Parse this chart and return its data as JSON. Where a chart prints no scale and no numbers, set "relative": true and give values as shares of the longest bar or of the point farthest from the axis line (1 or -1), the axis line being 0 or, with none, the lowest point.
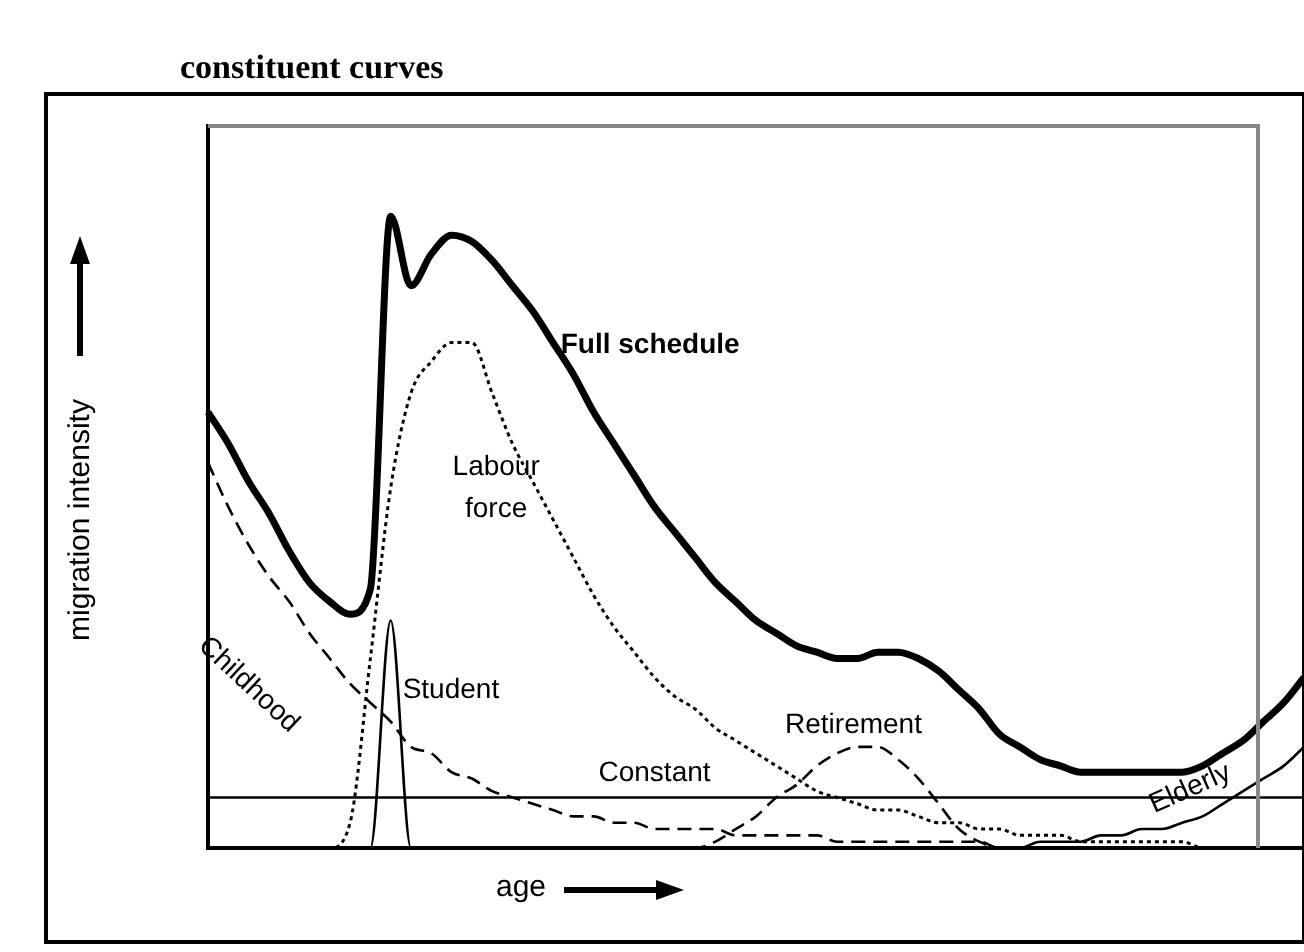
{
  "chart_data": {
    "type": "line",
    "title": "constituent curves",
    "xlabel": "age",
    "ylabel": "migration intensity",
    "relative": true,
    "legend": false,
    "marker": "none",
    "categories": [
      null,
      null,
      null,
      null,
      null,
      null,
      null,
      null,
      null,
      null,
      null,
      null,
      null,
      null,
      null,
      null,
      null,
      null,
      null,
      null,
      null,
      null,
      null,
      null,
      null,
      null,
      null,
      null,
      null,
      null,
      null,
      null,
      null,
      null,
      null,
      null,
      null,
      null,
      null,
      null,
      null,
      null,
      null,
      null,
      null,
      null,
      null,
      null,
      null,
      null,
      null,
      null,
      null,
      null,
      null
    ],
    "series": [
      {
        "name": "Full schedule",
        "color": "#000000",
        "line_style": "solid",
        "values": [
          0.69,
          0.64,
          0.58,
          0.53,
          0.47,
          0.42,
          0.39,
          0.37,
          0.41,
          1.0,
          0.89,
          0.94,
          0.97,
          0.96,
          0.93,
          0.89,
          0.85,
          0.8,
          0.75,
          0.69,
          0.64,
          0.59,
          0.54,
          0.5,
          0.46,
          0.42,
          0.39,
          0.36,
          0.34,
          0.32,
          0.31,
          0.3,
          0.3,
          0.31,
          0.31,
          0.3,
          0.28,
          0.25,
          0.22,
          0.18,
          0.16,
          0.14,
          0.13,
          0.12,
          0.12,
          0.12,
          0.12,
          0.12,
          0.12,
          0.13,
          0.15,
          0.17,
          0.2,
          0.23,
          0.27
        ]
      },
      {
        "name": "Labour force",
        "color": "#000000",
        "line_style": "dotted",
        "values": [
          0,
          0,
          0,
          0,
          0,
          0,
          0,
          0.04,
          0.3,
          0.57,
          0.72,
          0.77,
          0.8,
          0.8,
          0.72,
          0.64,
          0.58,
          0.52,
          0.46,
          0.4,
          0.35,
          0.31,
          0.27,
          0.24,
          0.22,
          0.19,
          0.17,
          0.15,
          0.13,
          0.11,
          0.09,
          0.08,
          0.07,
          0.06,
          0.06,
          0.05,
          0.04,
          0.04,
          0.03,
          0.03,
          0.02,
          0.02,
          0.02,
          0.01,
          0.01,
          0.01,
          0.01,
          0.01,
          0.01,
          0,
          0,
          0,
          0,
          0,
          0
        ]
      },
      {
        "name": "Childhood",
        "color": "#000000",
        "line_style": "dashed",
        "values": [
          0.61,
          0.54,
          0.48,
          0.43,
          0.39,
          0.34,
          0.3,
          0.26,
          0.23,
          0.2,
          0.16,
          0.15,
          0.12,
          0.11,
          0.09,
          0.08,
          0.07,
          0.06,
          0.05,
          0.05,
          0.04,
          0.04,
          0.03,
          0.03,
          0.03,
          0.03,
          0.02,
          0.02,
          0.02,
          0.02,
          0.02,
          0.01,
          0.01,
          0.01,
          0.01,
          0.01,
          0.01,
          0.01,
          0.01,
          0,
          0,
          0,
          0,
          0,
          0,
          0,
          0,
          0,
          0,
          0,
          0,
          0,
          0,
          0,
          0
        ]
      },
      {
        "name": "Student",
        "color": "#000000",
        "line_style": "solid",
        "values": [
          0,
          0,
          0,
          0,
          0,
          0,
          0,
          0,
          0,
          0.36,
          0,
          0,
          0,
          0,
          0,
          0,
          0,
          0,
          0,
          0,
          0,
          0,
          0,
          0,
          0,
          0,
          0,
          0,
          0,
          0,
          0,
          0,
          0,
          0,
          0,
          0,
          0,
          0,
          0,
          0,
          0,
          0,
          0,
          0,
          0,
          0,
          0,
          0,
          0,
          0,
          0,
          0,
          0,
          0,
          0
        ]
      },
      {
        "name": "Constant",
        "color": "#000000",
        "line_style": "solid",
        "values": [
          0.08,
          0.08,
          0.08,
          0.08,
          0.08,
          0.08,
          0.08,
          0.08,
          0.08,
          0.08,
          0.08,
          0.08,
          0.08,
          0.08,
          0.08,
          0.08,
          0.08,
          0.08,
          0.08,
          0.08,
          0.08,
          0.08,
          0.08,
          0.08,
          0.08,
          0.08,
          0.08,
          0.08,
          0.08,
          0.08,
          0.08,
          0.08,
          0.08,
          0.08,
          0.08,
          0.08,
          0.08,
          0.08,
          0.08,
          0.08,
          0.08,
          0.08,
          0.08,
          0.08,
          0.08,
          0.08,
          0.08,
          0.08,
          0.08,
          0.08,
          0.08,
          0.08,
          0.08,
          0.08,
          0.08
        ]
      },
      {
        "name": "Retirement",
        "color": "#000000",
        "line_style": "dashed",
        "values": [
          0,
          0,
          0,
          0,
          0,
          0,
          0,
          0,
          0,
          0,
          0,
          0,
          0,
          0,
          0,
          0,
          0,
          0,
          0,
          0,
          0,
          0,
          0,
          0,
          0,
          0.01,
          0.03,
          0.05,
          0.08,
          0.1,
          0.13,
          0.15,
          0.16,
          0.16,
          0.14,
          0.11,
          0.07,
          0.03,
          0.01,
          0,
          0,
          0,
          0,
          0,
          0,
          0,
          0,
          0,
          0,
          0,
          0,
          0,
          0,
          0,
          0
        ]
      },
      {
        "name": "Elderly",
        "color": "#000000",
        "line_style": "solid",
        "values": [
          0,
          0,
          0,
          0,
          0,
          0,
          0,
          0,
          0,
          0,
          0,
          0,
          0,
          0,
          0,
          0,
          0,
          0,
          0,
          0,
          0,
          0,
          0,
          0,
          0,
          0,
          0,
          0,
          0,
          0,
          0,
          0,
          0,
          0,
          0,
          0,
          0,
          0,
          0,
          0,
          0,
          0.01,
          0.01,
          0.01,
          0.02,
          0.02,
          0.03,
          0.03,
          0.04,
          0.05,
          0.07,
          0.09,
          0.11,
          0.13,
          0.16
        ]
      }
    ]
  }
}
